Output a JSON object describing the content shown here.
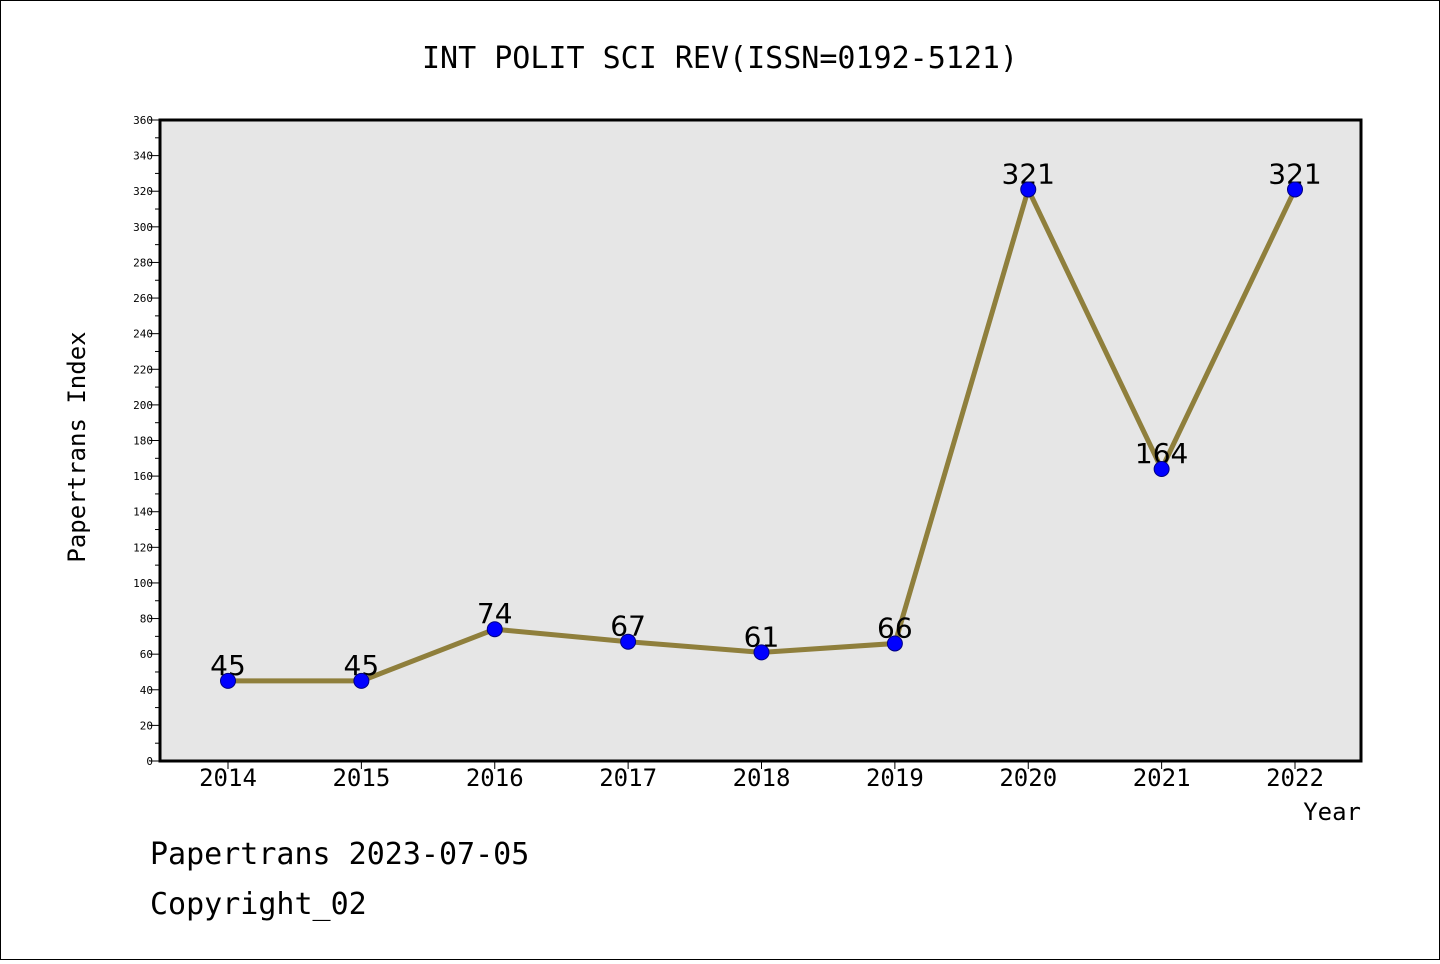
{
  "title": "INT POLIT SCI REV(ISSN=0192-5121)",
  "footer": {
    "line1": "Papertrans 2023-07-05",
    "line2": "Copyright_02"
  },
  "colors": {
    "plot_background": "#e6e6e6",
    "line": "#8f7f3c",
    "marker": "#0000ff",
    "axis": "#000000"
  },
  "chart_data": {
    "type": "line",
    "title": "INT POLIT SCI REV(ISSN=0192-5121)",
    "xlabel": "Year",
    "ylabel": "Papertrans Index",
    "categories": [
      "2014",
      "2015",
      "2016",
      "2017",
      "2018",
      "2019",
      "2020",
      "2021",
      "2022"
    ],
    "series": [
      {
        "values": [
          45,
          45,
          74,
          67,
          61,
          66,
          321,
          164,
          321
        ]
      }
    ],
    "data_labels": [
      "45",
      "45",
      "74",
      "67",
      "61",
      "66",
      "321",
      "164",
      "321"
    ],
    "ylim": [
      0,
      360
    ],
    "yticks": [
      0,
      20,
      40,
      60,
      80,
      100,
      120,
      140,
      160,
      180,
      200,
      220,
      240,
      260,
      280,
      300,
      320,
      340,
      360
    ],
    "grid": false,
    "legend": "none"
  }
}
